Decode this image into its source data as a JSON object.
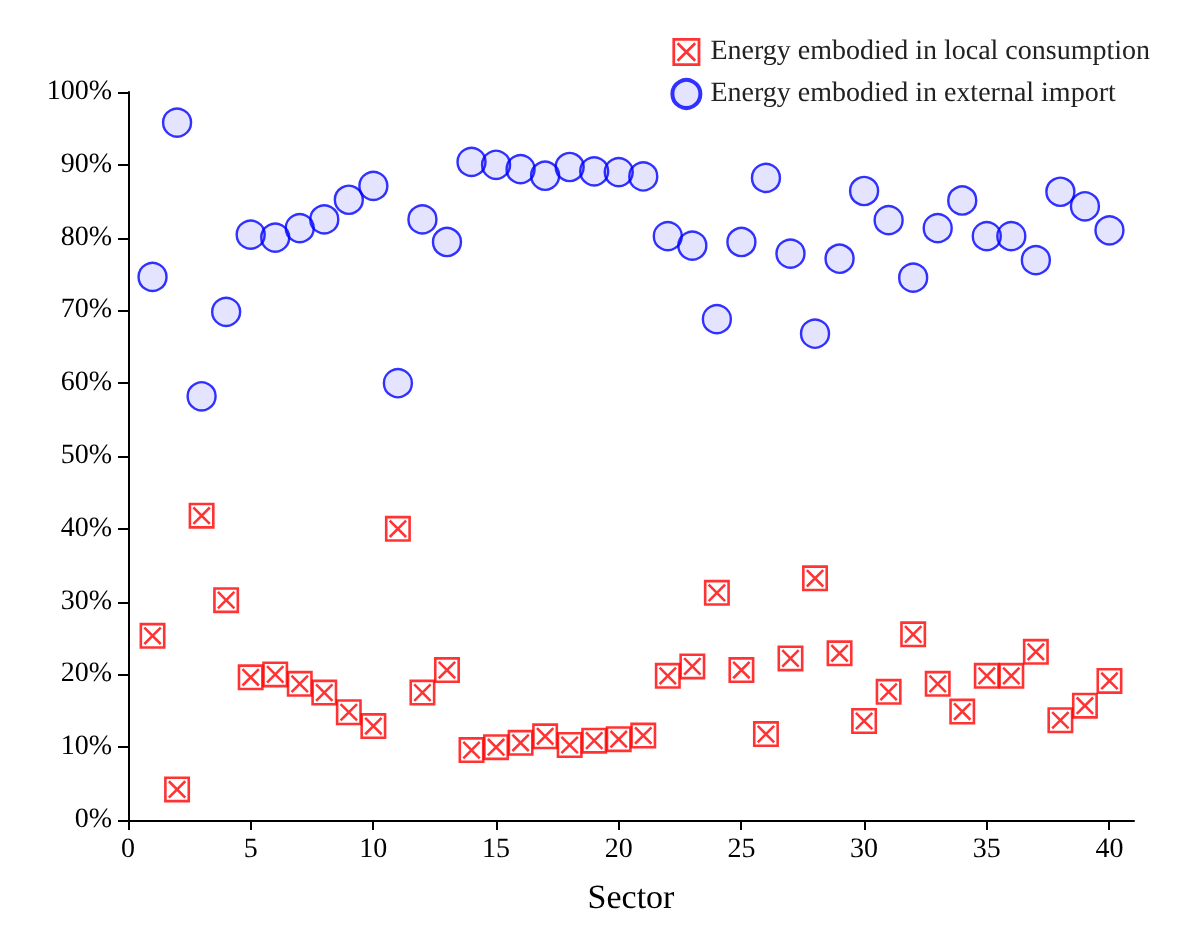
{
  "chart_data": {
    "type": "scatter",
    "xlabel": "Sector",
    "x": [
      1,
      2,
      3,
      4,
      5,
      6,
      7,
      8,
      9,
      10,
      11,
      12,
      13,
      14,
      15,
      16,
      17,
      18,
      19,
      20,
      21,
      22,
      23,
      24,
      25,
      26,
      27,
      28,
      29,
      30,
      31,
      32,
      33,
      34,
      35,
      36,
      37,
      38,
      39,
      40
    ],
    "series": [
      {
        "name": "Energy embodied in local consumption",
        "color": "#ff0000",
        "marker": "square",
        "values": [
          25.3,
          4.2,
          41.8,
          30.2,
          19.6,
          20.0,
          18.7,
          17.5,
          14.8,
          12.9,
          40.0,
          17.5,
          20.6,
          9.6,
          10.0,
          10.6,
          11.5,
          10.3,
          10.9,
          11.1,
          11.6,
          19.8,
          21.1,
          31.2,
          20.6,
          11.8,
          22.2,
          33.2,
          22.9,
          13.6,
          17.6,
          25.5,
          18.7,
          14.9,
          19.8,
          19.8,
          23.1,
          13.7,
          15.7,
          19.1
        ]
      },
      {
        "name": "Energy embodied in external import",
        "color": "#0000ff",
        "marker": "circle",
        "values": [
          74.6,
          95.8,
          58.2,
          69.8,
          80.4,
          80.0,
          81.3,
          82.5,
          85.2,
          87.1,
          60.0,
          82.5,
          79.4,
          90.4,
          90.0,
          89.4,
          88.5,
          89.7,
          89.1,
          89.0,
          88.4,
          80.2,
          78.9,
          68.8,
          79.4,
          88.2,
          77.8,
          66.8,
          77.1,
          86.4,
          82.4,
          74.5,
          81.3,
          85.1,
          80.2,
          80.2,
          76.9,
          86.3,
          84.3,
          81.0
        ]
      }
    ],
    "xlim": [
      0,
      41
    ],
    "xticks": [
      0,
      5,
      10,
      15,
      20,
      25,
      30,
      35,
      40
    ],
    "ylim": [
      0,
      100
    ],
    "yticks": [
      {
        "value": 0,
        "label": "0%"
      },
      {
        "value": 10,
        "label": "10%"
      },
      {
        "value": 20,
        "label": "20%"
      },
      {
        "value": 30,
        "label": "30%"
      },
      {
        "value": 40,
        "label": "40%"
      },
      {
        "value": 50,
        "label": "50%"
      },
      {
        "value": 60,
        "label": "60%"
      },
      {
        "value": 70,
        "label": "70%"
      },
      {
        "value": 80,
        "label": "80%"
      },
      {
        "value": 90,
        "label": "90%"
      },
      {
        "value": 100,
        "label": "100%"
      }
    ],
    "grid": false,
    "legend": "top right"
  }
}
